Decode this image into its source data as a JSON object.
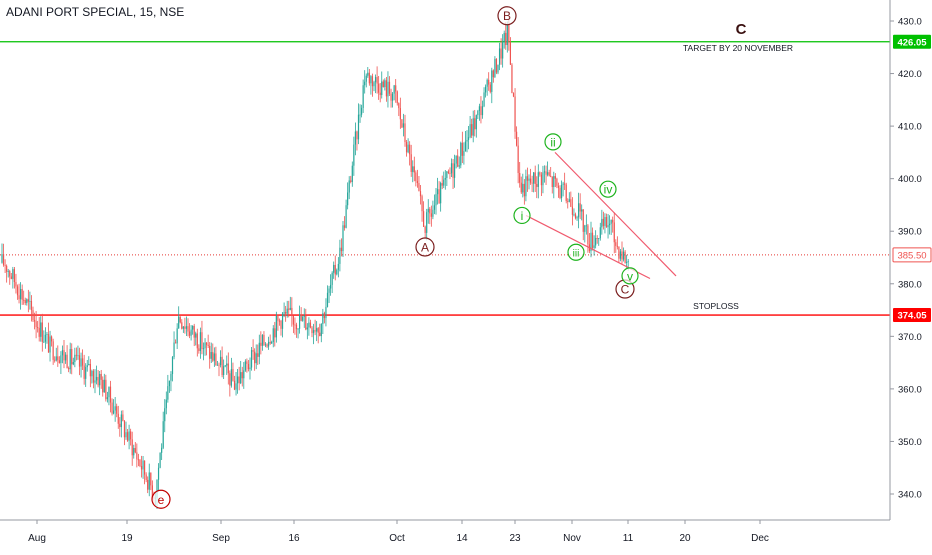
{
  "chart_data": {
    "type": "line",
    "title": "ADANI PORT SPECIAL, 15, NSE",
    "subtitle": "",
    "xlabel": "",
    "ylabel": "",
    "ylim": [
      335,
      432
    ],
    "yticks": [
      340,
      350,
      360,
      370,
      380,
      390,
      400,
      410,
      420,
      430
    ],
    "xticks": [
      "Aug",
      "19",
      "Sep",
      "16",
      "Oct",
      "14",
      "23",
      "Nov",
      "11",
      "20",
      "Dec"
    ],
    "grid": false,
    "series": [
      {
        "name": "",
        "color": "#26a69a",
        "x": [
          "Aug",
          "",
          "19",
          "",
          "Sep",
          "",
          "16",
          "",
          "",
          "Oct",
          "",
          "14",
          "",
          "23",
          "",
          "",
          "",
          "Nov",
          "",
          "",
          "11"
        ],
        "values": [
          384,
          368,
          362,
          340,
          374,
          361,
          374,
          372,
          386,
          420,
          416,
          391,
          412,
          428,
          398,
          401,
          394,
          388,
          392,
          388,
          384
        ]
      }
    ],
    "horizontal_lines": [
      {
        "label": "426.05",
        "value": 426.05,
        "color": "#00c000",
        "style": "solid",
        "text": "TARGET BY 20 NOVEMBER"
      },
      {
        "label": "385.50",
        "value": 385.5,
        "color": "#e53935",
        "style": "dotted",
        "text": ""
      },
      {
        "label": "374.05",
        "value": 374.05,
        "color": "#ff0000",
        "style": "solid",
        "text": "STOPLOSS"
      }
    ],
    "wave_labels": [
      {
        "text": "B",
        "color": "#7b1f1f",
        "x": "23",
        "value": 431
      },
      {
        "text": "A",
        "color": "#7b1f1f",
        "x": "Oct",
        "value": 387
      },
      {
        "text": "C",
        "color": "#7b1f1f",
        "x": "11",
        "value": 379
      },
      {
        "text": "C",
        "color": "#7b1f1f",
        "x": "20",
        "value": 428.5
      },
      {
        "text": "e",
        "color": "#c00000",
        "x": "19",
        "value": 339
      },
      {
        "text": "i",
        "color": "#1db31d",
        "x": "23",
        "value": 393
      },
      {
        "text": "ii",
        "color": "#1db31d",
        "x": "23",
        "value": 407
      },
      {
        "text": "iii",
        "color": "#1db31d",
        "x": "Nov",
        "value": 386
      },
      {
        "text": "iv",
        "color": "#1db31d",
        "x": "Nov",
        "value": 398
      },
      {
        "text": "v",
        "color": "#1db31d",
        "x": "11",
        "value": 381.5
      }
    ]
  },
  "ui": {
    "last_price_label": "385.50",
    "target_price_label": "426.05",
    "stoploss_price_label": "374.05"
  }
}
